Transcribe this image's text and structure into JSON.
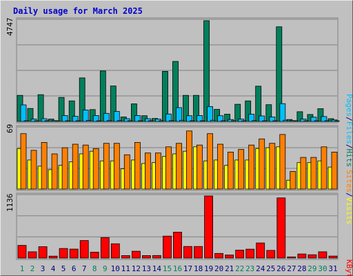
{
  "title": "Daily usage for March 2025",
  "colors": {
    "background": "#c0c0c0",
    "title": "#0000cc",
    "hits": "#00805c",
    "files": "#00c0ff",
    "pages": "#00c0ff",
    "visits": "#ffff00",
    "sites": "#ff8000",
    "kbytes": "#ff0000",
    "weekend_day": "#00805c",
    "weekday": "#000080",
    "grid": "#808080"
  },
  "labels": {
    "pages": "Pages",
    "files": "Files",
    "hits": "Hits",
    "sites": "Sites",
    "visits": "Visits",
    "kbytes": "KBytes",
    "sep": "/"
  },
  "chart_data": {
    "type": "bar",
    "x": [
      "1",
      "2",
      "3",
      "4",
      "5",
      "6",
      "7",
      "8",
      "9",
      "10",
      "11",
      "12",
      "13",
      "14",
      "15",
      "16",
      "17",
      "18",
      "19",
      "20",
      "21",
      "22",
      "23",
      "24",
      "25",
      "26",
      "27",
      "28",
      "29",
      "30",
      "31"
    ],
    "weekend_days": [
      "1",
      "2",
      "8",
      "9",
      "15",
      "16",
      "22",
      "23",
      "29",
      "30"
    ],
    "panels": [
      {
        "name": "hits-files-pages",
        "ymax_label": "4747",
        "ymax": 4747,
        "series": [
          {
            "name": "Hits",
            "color": "#00805c",
            "values": [
              1230,
              610,
              1260,
              110,
              1130,
              970,
              2050,
              560,
              2380,
              1670,
              210,
              830,
              270,
              140,
              2360,
              2830,
              1230,
              1230,
              4747,
              570,
              340,
              810,
              970,
              1660,
              790,
              4460,
              90,
              460,
              330,
              600,
              130
            ]
          },
          {
            "name": "Files",
            "color": "#00c0ff",
            "values": [
              780,
              110,
              130,
              40,
              280,
              240,
              540,
              280,
              380,
              470,
              130,
              280,
              130,
              110,
              350,
              650,
              270,
              280,
              700,
              270,
              90,
              110,
              340,
              260,
              210,
              840,
              40,
              110,
              200,
              230,
              70
            ]
          },
          {
            "name": "Pages",
            "color": "#00c0ff",
            "values": [
              35,
              20,
              25,
              10,
              30,
              30,
              45,
              30,
              40,
              40,
              20,
              30,
              20,
              15,
              40,
              55,
              30,
              30,
              60,
              30,
              15,
              20,
              40,
              30,
              25,
              60,
              10,
              20,
              25,
              25,
              10
            ]
          }
        ]
      },
      {
        "name": "visits-sites",
        "ymax_label": "69",
        "ymax": 69,
        "series": [
          {
            "name": "Visits",
            "color": "#ffff00",
            "values": [
              46,
              33,
              26,
              22,
              27,
              31,
              40,
              43,
              32,
              32,
              23,
              33,
              29,
              30,
              37,
              40,
              43,
              48,
              32,
              33,
              27,
              33,
              33,
              46,
              47,
              48,
              10,
              30,
              30,
              32,
              25
            ]
          },
          {
            "name": "Sites",
            "color": "#ff8000",
            "values": [
              63,
              44,
              53,
              40,
              47,
              51,
              50,
              46,
              52,
              52,
              39,
              53,
              41,
              41,
              48,
              52,
              66,
              50,
              63,
              51,
              42,
              45,
              50,
              57,
              52,
              62,
              20,
              36,
              36,
              48,
              42
            ]
          }
        ]
      },
      {
        "name": "kbytes",
        "ymax_label": "1136",
        "ymax": 1136,
        "series": [
          {
            "name": "KBytes",
            "color": "#ff0000",
            "values": [
              232,
              115,
              208,
              35,
              175,
              164,
              321,
              108,
              375,
              261,
              45,
              125,
              45,
              47,
              402,
              474,
              212,
              212,
              1136,
              85,
              57,
              145,
              163,
              277,
              140,
              1101,
              22,
              74,
              61,
              115,
              37
            ]
          }
        ]
      }
    ]
  }
}
